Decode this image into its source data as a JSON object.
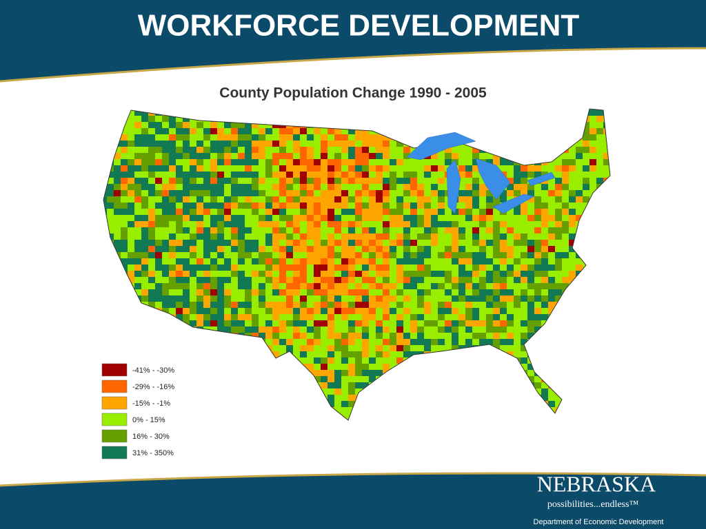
{
  "header": {
    "title": "WORKFORCE DEVELOPMENT"
  },
  "map": {
    "title": "County Population Change 1990 - 2005",
    "legend": [
      {
        "label": "-41% - -30%",
        "color": "#a00000"
      },
      {
        "label": "-29% - -16%",
        "color": "#ff6600"
      },
      {
        "label": "-15% - -1%",
        "color": "#ffa500"
      },
      {
        "label": "0% - 15%",
        "color": "#99ee00"
      },
      {
        "label": "16% - 30%",
        "color": "#66a000"
      },
      {
        "label": "31% - 350%",
        "color": "#117a55"
      }
    ]
  },
  "footer": {
    "brand": "NEBRASKA",
    "tagline": "possibilities...endless™",
    "department": "Department of Economic Development"
  }
}
